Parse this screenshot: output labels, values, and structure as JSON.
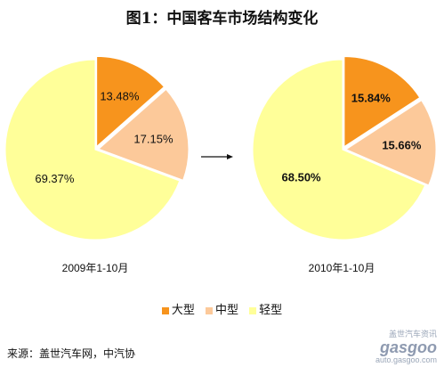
{
  "title": "图1：中国客车市场结构变化",
  "colors": {
    "large": "#F7941D",
    "medium": "#FCC99A",
    "light": "#FFFF99"
  },
  "chart_data": [
    {
      "type": "pie",
      "title": "2009年1-10月",
      "slices": [
        {
          "name": "大型",
          "value": 13.48,
          "label": "13.48%"
        },
        {
          "name": "中型",
          "value": 17.15,
          "label": "17.15%"
        },
        {
          "name": "轻型",
          "value": 69.37,
          "label": "69.37%"
        }
      ]
    },
    {
      "type": "pie",
      "title": "2010年1-10月",
      "slices": [
        {
          "name": "大型",
          "value": 15.84,
          "label": "15.84%"
        },
        {
          "name": "中型",
          "value": 15.66,
          "label": "15.66%"
        },
        {
          "name": "轻型",
          "value": 68.5,
          "label": "68.50%"
        }
      ]
    }
  ],
  "legend": [
    "大型",
    "中型",
    "轻型"
  ],
  "source": "来源：盖世汽车网，中汽协",
  "watermark": {
    "cn": "盖世汽车资讯",
    "logo": "gasgoo",
    "url": "auto.gasgoo.com"
  }
}
